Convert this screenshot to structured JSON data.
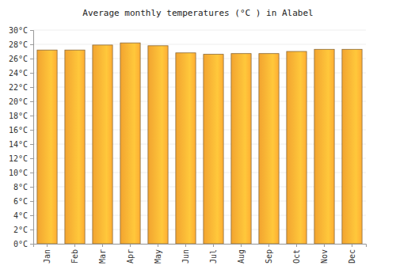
{
  "chart_data": {
    "type": "bar",
    "title": "Average monthly temperatures (°C ) in Alabel",
    "categories": [
      "Jan",
      "Feb",
      "Mar",
      "Apr",
      "May",
      "Jun",
      "Jul",
      "Aug",
      "Sep",
      "Oct",
      "Nov",
      "Dec"
    ],
    "values": [
      27.2,
      27.2,
      27.9,
      28.2,
      27.8,
      26.8,
      26.6,
      26.7,
      26.7,
      27.0,
      27.3,
      27.3
    ],
    "color": "#ffad33",
    "ylim": [
      0,
      30
    ],
    "yticks": [
      {
        "value": 0,
        "label": "0°C"
      },
      {
        "value": 2,
        "label": "2°C"
      },
      {
        "value": 4,
        "label": "4°C"
      },
      {
        "value": 6,
        "label": "6°C"
      },
      {
        "value": 8,
        "label": "8°C"
      },
      {
        "value": 10,
        "label": "10°C"
      },
      {
        "value": 12,
        "label": "12°C"
      },
      {
        "value": 14,
        "label": "14°C"
      },
      {
        "value": 16,
        "label": "16°C"
      },
      {
        "value": 18,
        "label": "18°C"
      },
      {
        "value": 20,
        "label": "20°C"
      },
      {
        "value": 22,
        "label": "22°C"
      },
      {
        "value": 24,
        "label": "24°C"
      },
      {
        "value": 26,
        "label": "26°C"
      },
      {
        "value": 28,
        "label": "28°C"
      },
      {
        "value": 30,
        "label": "30°C"
      }
    ],
    "grid": true
  }
}
